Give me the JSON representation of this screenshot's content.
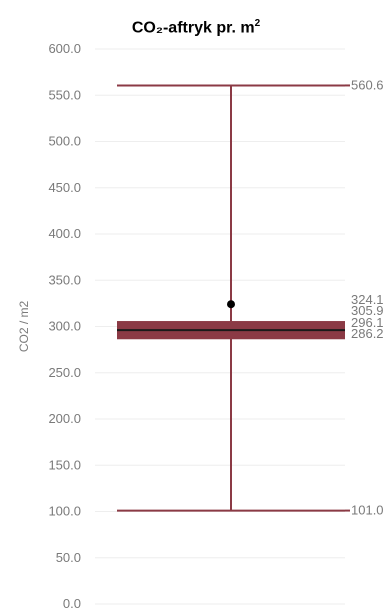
{
  "chart_data": {
    "type": "box",
    "title": "CO₂-aftryk pr. m",
    "title_superscript": "2",
    "ylabel": "CO2 / m2",
    "ylim": [
      0,
      600
    ],
    "yticks": [
      "0.0",
      "50.0",
      "100.0",
      "150.0",
      "200.0",
      "250.0",
      "300.0",
      "350.0",
      "400.0",
      "450.0",
      "500.0",
      "550.0",
      "600.0"
    ],
    "ytick_values": [
      0,
      50,
      100,
      150,
      200,
      250,
      300,
      350,
      400,
      450,
      500,
      550,
      600
    ],
    "box": {
      "whisker_high": 560.6,
      "q3": 305.9,
      "median": 296.1,
      "q1": 286.2,
      "whisker_low": 101.0,
      "mean": 324.1
    },
    "value_labels": {
      "whisker_high": "560.6",
      "mean": "324.1",
      "q3": "305.9",
      "median": "296.1",
      "q1": "286.2",
      "whisker_low": "101.0"
    },
    "colors": {
      "box": "#8b3a45",
      "median": "#1a1a1a",
      "mean_dot": "#000000",
      "grid": "#eeeeee",
      "labels": "#7a7a7a"
    }
  }
}
